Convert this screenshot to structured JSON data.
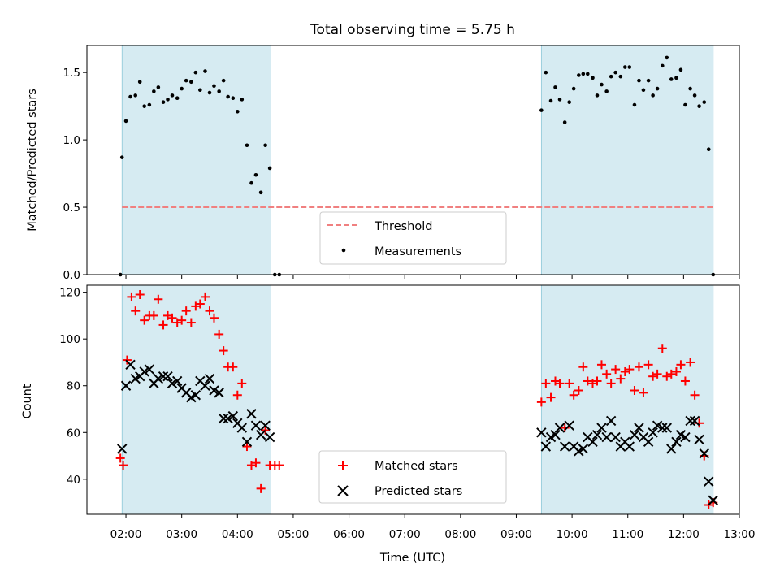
{
  "title": "Total observing time = 5.75 h",
  "xlabel": "Time (UTC)",
  "x_ticks": [
    "02:00",
    "03:00",
    "04:00",
    "05:00",
    "06:00",
    "07:00",
    "08:00",
    "09:00",
    "10:00",
    "11:00",
    "12:00",
    "13:00"
  ],
  "top_panel": {
    "ylabel": "Matched/Predicted stars",
    "ylim": [
      0,
      1.7
    ],
    "y_ticks": [
      "0.0",
      "0.5",
      "1.0",
      "1.5"
    ],
    "legend": {
      "threshold": "Threshold",
      "measurements": "Measurements"
    }
  },
  "bottom_panel": {
    "ylabel": "Count",
    "ylim": [
      25,
      123
    ],
    "y_ticks": [
      "40",
      "60",
      "80",
      "100",
      "120"
    ],
    "legend": {
      "matched": "Matched stars",
      "predicted": "Predicted stars"
    }
  },
  "colors": {
    "shade": "#add8e6",
    "threshold": "#f08080",
    "measurements": "#000000",
    "matched": "#ff0000",
    "predicted": "#000000"
  },
  "chart_data": [
    {
      "type": "scatter",
      "panel": "top",
      "ylabel": "Matched/Predicted stars",
      "xlabel": "",
      "x_unit": "hours UTC",
      "xlim": [
        1.3,
        13.0
      ],
      "ylim": [
        0,
        1.7
      ],
      "grid": false,
      "legend_position": "lower center",
      "observing_windows": [
        [
          1.93,
          4.6
        ],
        [
          9.45,
          12.53
        ]
      ],
      "threshold": {
        "name": "Threshold",
        "value": 0.5,
        "x_range": [
          1.93,
          12.53
        ],
        "style": "dashed"
      },
      "series": [
        {
          "name": "Measurements",
          "x": [
            1.9,
            1.93,
            2.0,
            2.08,
            2.17,
            2.25,
            2.33,
            2.42,
            2.5,
            2.58,
            2.67,
            2.75,
            2.83,
            2.92,
            3.0,
            3.08,
            3.17,
            3.25,
            3.33,
            3.42,
            3.5,
            3.58,
            3.67,
            3.75,
            3.83,
            3.92,
            4.0,
            4.08,
            4.17,
            4.25,
            4.33,
            4.42,
            4.5,
            4.58,
            4.67,
            4.75,
            9.45,
            9.53,
            9.62,
            9.7,
            9.78,
            9.87,
            9.95,
            10.03,
            10.12,
            10.2,
            10.28,
            10.37,
            10.45,
            10.53,
            10.62,
            10.7,
            10.78,
            10.87,
            10.95,
            11.03,
            11.12,
            11.2,
            11.28,
            11.37,
            11.45,
            11.53,
            11.62,
            11.7,
            11.78,
            11.87,
            11.95,
            12.03,
            12.12,
            12.2,
            12.28,
            12.37,
            12.45,
            12.53
          ],
          "y": [
            0.0,
            0.87,
            1.14,
            1.32,
            1.33,
            1.43,
            1.25,
            1.26,
            1.36,
            1.39,
            1.28,
            1.3,
            1.33,
            1.31,
            1.38,
            1.44,
            1.43,
            1.5,
            1.37,
            1.51,
            1.35,
            1.4,
            1.36,
            1.44,
            1.32,
            1.31,
            1.21,
            1.3,
            0.96,
            0.68,
            0.74,
            0.61,
            0.96,
            0.79,
            0.0,
            0.0,
            1.22,
            1.5,
            1.29,
            1.39,
            1.3,
            1.13,
            1.28,
            1.38,
            1.48,
            1.49,
            1.49,
            1.46,
            1.33,
            1.41,
            1.36,
            1.47,
            1.5,
            1.47,
            1.54,
            1.54,
            1.26,
            1.44,
            1.37,
            1.44,
            1.33,
            1.38,
            1.55,
            1.61,
            1.45,
            1.46,
            1.52,
            1.26,
            1.38,
            1.33,
            1.25,
            1.28,
            0.93,
            0.0
          ]
        }
      ]
    },
    {
      "type": "scatter",
      "panel": "bottom",
      "ylabel": "Count",
      "xlabel": "Time (UTC)",
      "x_unit": "hours UTC",
      "xlim": [
        1.3,
        13.0
      ],
      "ylim": [
        25,
        123
      ],
      "grid": false,
      "legend_position": "lower center",
      "observing_windows": [
        [
          1.93,
          4.6
        ],
        [
          9.45,
          12.53
        ]
      ],
      "series": [
        {
          "name": "Matched stars",
          "marker": "plus",
          "x": [
            1.9,
            1.95,
            2.02,
            2.1,
            2.17,
            2.25,
            2.33,
            2.42,
            2.5,
            2.58,
            2.67,
            2.75,
            2.83,
            2.92,
            3.0,
            3.08,
            3.17,
            3.25,
            3.33,
            3.42,
            3.5,
            3.58,
            3.67,
            3.75,
            3.83,
            3.92,
            4.0,
            4.08,
            4.17,
            4.25,
            4.33,
            4.42,
            4.5,
            4.58,
            4.67,
            4.75,
            9.45,
            9.53,
            9.62,
            9.7,
            9.78,
            9.87,
            9.95,
            10.03,
            10.12,
            10.2,
            10.28,
            10.37,
            10.45,
            10.53,
            10.62,
            10.7,
            10.78,
            10.87,
            10.95,
            11.03,
            11.12,
            11.2,
            11.28,
            11.37,
            11.45,
            11.53,
            11.62,
            11.7,
            11.78,
            11.87,
            11.95,
            12.03,
            12.12,
            12.2,
            12.28,
            12.37,
            12.45,
            12.53
          ],
          "y": [
            49,
            46,
            91,
            118,
            112,
            119,
            108,
            110,
            110,
            117,
            106,
            110,
            109,
            107,
            108,
            112,
            107,
            114,
            115,
            118,
            112,
            109,
            102,
            95,
            88,
            88,
            76,
            81,
            54,
            46,
            47,
            36,
            61,
            46,
            46,
            46,
            73,
            81,
            75,
            82,
            81,
            62,
            81,
            76,
            78,
            88,
            82,
            81,
            82,
            89,
            85,
            81,
            87,
            83,
            86,
            87,
            78,
            88,
            77,
            89,
            84,
            85,
            96,
            84,
            85,
            86,
            89,
            82,
            90,
            76,
            64,
            50,
            29,
            30
          ]
        },
        {
          "name": "Predicted stars",
          "marker": "x",
          "x": [
            1.93,
            2.0,
            2.08,
            2.17,
            2.25,
            2.33,
            2.42,
            2.5,
            2.58,
            2.67,
            2.75,
            2.83,
            2.92,
            3.0,
            3.08,
            3.17,
            3.25,
            3.33,
            3.42,
            3.5,
            3.58,
            3.67,
            3.75,
            3.83,
            3.92,
            4.0,
            4.08,
            4.17,
            4.25,
            4.33,
            4.42,
            4.5,
            4.58,
            9.45,
            9.53,
            9.62,
            9.7,
            9.78,
            9.87,
            9.95,
            10.03,
            10.12,
            10.2,
            10.28,
            10.37,
            10.45,
            10.53,
            10.62,
            10.7,
            10.78,
            10.87,
            10.95,
            11.03,
            11.12,
            11.2,
            11.28,
            11.37,
            11.45,
            11.53,
            11.62,
            11.7,
            11.78,
            11.87,
            11.95,
            12.03,
            12.12,
            12.2,
            12.28,
            12.37,
            12.45,
            12.53
          ],
          "y": [
            53,
            80,
            89,
            83,
            84,
            86,
            87,
            81,
            83,
            84,
            84,
            81,
            82,
            79,
            77,
            75,
            76,
            82,
            80,
            83,
            78,
            77,
            66,
            66,
            67,
            64,
            62,
            56,
            68,
            63,
            59,
            63,
            58,
            60,
            54,
            58,
            59,
            62,
            54,
            63,
            54,
            52,
            53,
            58,
            56,
            59,
            62,
            58,
            65,
            58,
            54,
            56,
            54,
            59,
            62,
            58,
            56,
            60,
            63,
            62,
            62,
            53,
            56,
            59,
            58,
            65,
            65,
            57,
            51,
            39,
            31
          ]
        }
      ]
    }
  ]
}
